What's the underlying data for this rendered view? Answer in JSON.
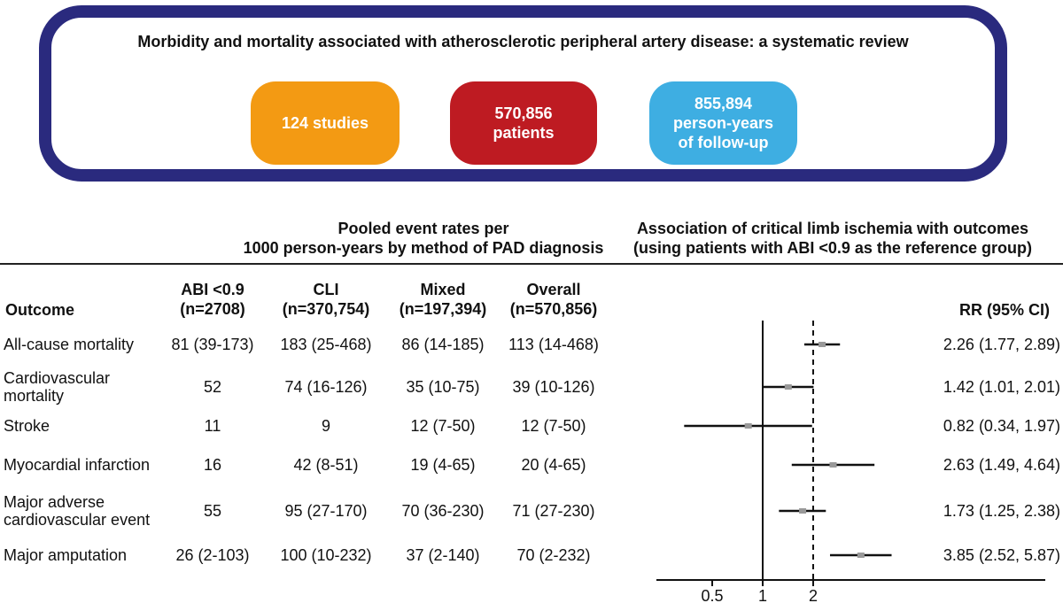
{
  "review_title": "Morbidity and mortality associated with atherosclerotic peripheral artery disease: a systematic review",
  "stats": [
    {
      "lines": [
        "124 studies"
      ],
      "color": "#f39a13"
    },
    {
      "lines": [
        "570,856",
        "patients"
      ],
      "color": "#be1b22"
    },
    {
      "lines": [
        "855,894",
        "person-years",
        "of follow-up"
      ],
      "color": "#3eaee2"
    }
  ],
  "colors": {
    "frame": "#2a2a7e",
    "text": "#111111"
  },
  "sections": {
    "rates": [
      "Pooled event rates per",
      "1000 person-years by method of PAD diagnosis"
    ],
    "association": [
      "Association of critical limb ischemia with outcomes",
      "(using patients with ABI <0.9 as the reference group)"
    ]
  },
  "columns": {
    "outcome": "Outcome",
    "abi": [
      "ABI <0.9",
      "(n=2708)"
    ],
    "cli": [
      "CLI",
      "(n=370,754)"
    ],
    "mixed": [
      "Mixed",
      "(n=197,394)"
    ],
    "overall": [
      "Overall",
      "(n=570,856)"
    ],
    "rr": "RR (95% CI)"
  },
  "chart_data": {
    "type": "forest",
    "scale": "log",
    "reference_line": 1,
    "dashed_line": 2,
    "xticks": [
      0.5,
      1,
      2
    ],
    "xtick_labels": [
      "0.5",
      "1",
      "2"
    ],
    "rows": [
      {
        "outcome": [
          "All-cause mortality"
        ],
        "abi": "81 (39-173)",
        "cli": "183 (25-468)",
        "mixed": "86 (14-185)",
        "overall": "113 (14-468)",
        "rr_text": "2.26 (1.77, 2.89)",
        "rr": 2.26,
        "lo": 1.77,
        "hi": 2.89
      },
      {
        "outcome": [
          "Cardiovascular",
          "mortality"
        ],
        "abi": "52",
        "cli": "74 (16-126)",
        "mixed": "35 (10-75)",
        "overall": "39 (10-126)",
        "rr_text": "1.42 (1.01, 2.01)",
        "rr": 1.42,
        "lo": 1.01,
        "hi": 2.01
      },
      {
        "outcome": [
          "Stroke"
        ],
        "abi": "11",
        "cli": "9",
        "mixed": "12 (7-50)",
        "overall": "12 (7-50)",
        "rr_text": "0.82 (0.34, 1.97)",
        "rr": 0.82,
        "lo": 0.34,
        "hi": 1.97
      },
      {
        "outcome": [
          "Myocardial infarction"
        ],
        "abi": "16",
        "cli": "42 (8-51)",
        "mixed": "19 (4-65)",
        "overall": "20 (4-65)",
        "rr_text": "2.63 (1.49, 4.64)",
        "rr": 2.63,
        "lo": 1.49,
        "hi": 4.64
      },
      {
        "outcome": [
          "Major adverse",
          "cardiovascular event"
        ],
        "abi": "55",
        "cli": "95 (27-170)",
        "mixed": "70 (36-230)",
        "overall": "71 (27-230)",
        "rr_text": "1.73 (1.25, 2.38)",
        "rr": 1.73,
        "lo": 1.25,
        "hi": 2.38
      },
      {
        "outcome": [
          "Major amputation"
        ],
        "abi": "26 (2-103)",
        "cli": "100 (10-232)",
        "mixed": "37 (2-140)",
        "overall": "70 (2-232)",
        "rr_text": "3.85 (2.52, 5.87)",
        "rr": 3.85,
        "lo": 2.52,
        "hi": 5.87
      }
    ]
  }
}
